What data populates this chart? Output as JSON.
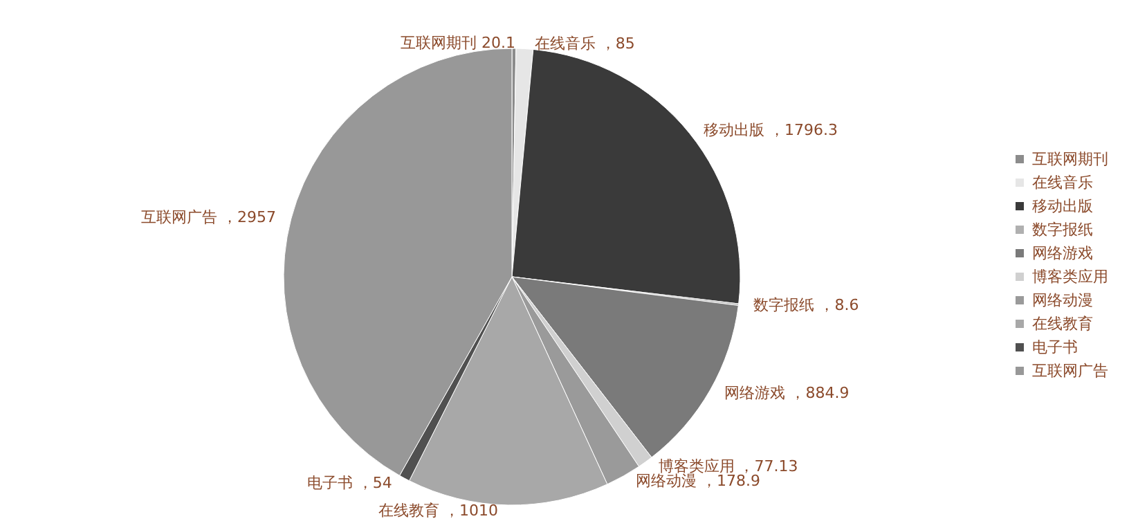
{
  "chart_data": {
    "type": "pie",
    "categories": [
      "互联网期刊",
      "在线音乐",
      "移动出版",
      "数字报纸",
      "网络游戏",
      "博客类应用",
      "网络动漫",
      "在线教育",
      "电子书",
      "互联网广告"
    ],
    "values": [
      20.1,
      85,
      1796.3,
      8.6,
      884.9,
      77.13,
      178.9,
      1010,
      54,
      2957
    ],
    "colors": [
      "#8c8c8c",
      "#e6e6e6",
      "#3a3a3a",
      "#b0b0b0",
      "#7a7a7a",
      "#d0d0d0",
      "#9a9a9a",
      "#a8a8a8",
      "#505050",
      "#989898"
    ],
    "value_labels": [
      "20.1",
      "，85",
      "，1796.3",
      "，8.6",
      "，884.9",
      "，77.13",
      "，178.9",
      "，1010",
      "，54",
      "，2957"
    ],
    "legend": "right"
  }
}
